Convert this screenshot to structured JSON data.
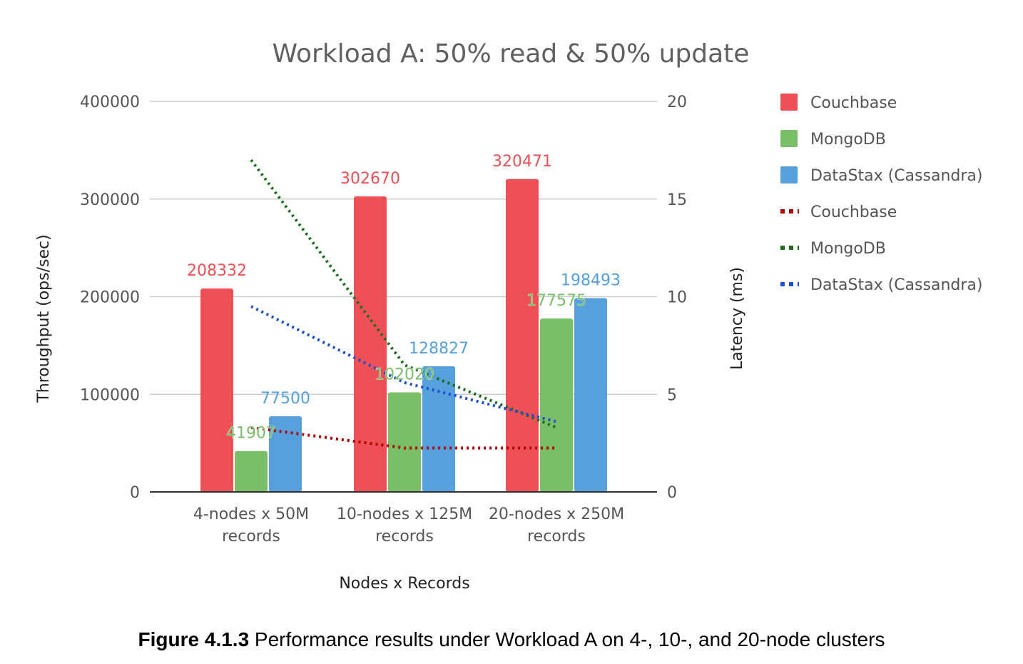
{
  "chart_data": {
    "type": "bar",
    "title": "Workload A: 50% read & 50% update",
    "xlabel": "Nodes x Records",
    "ylabel": "Throughput (ops/sec)",
    "y2label": "Latency (ms)",
    "ylim": [
      0,
      400000
    ],
    "y2lim": [
      0,
      20
    ],
    "yticks": [
      "0",
      "100000",
      "200000",
      "300000",
      "400000"
    ],
    "y2ticks": [
      "0",
      "5",
      "10",
      "15",
      "20"
    ],
    "grid": true,
    "legend_position": "right",
    "categories": [
      [
        "4-nodes x 50M",
        "records"
      ],
      [
        "10-nodes x 125M",
        "records"
      ],
      [
        "20-nodes x 250M",
        "records"
      ]
    ],
    "series": [
      {
        "name": "Couchbase",
        "values": [
          208332,
          302670,
          320471
        ],
        "labels": [
          "208332",
          "302670",
          "320471"
        ],
        "color": "#ee5055",
        "label_color": "#ee5055"
      },
      {
        "name": "MongoDB",
        "values": [
          41907,
          102020,
          177575
        ],
        "labels": [
          "41907",
          "102020",
          "177575"
        ],
        "color": "#7abf68",
        "label_color": "#7abf68"
      },
      {
        "name": "DataStax (Cassandra)",
        "values": [
          77500,
          128827,
          198493
        ],
        "labels": [
          "77500",
          "128827",
          "198493"
        ],
        "color": "#55a0dd",
        "label_color": "#55a0dd"
      }
    ],
    "line_series": [
      {
        "name": "Couchbase",
        "values": [
          3.3,
          2.25,
          2.25
        ],
        "color": "#b30000"
      },
      {
        "name": "MongoDB",
        "values": [
          17.0,
          6.5,
          3.3
        ],
        "color": "#1e6b1e"
      },
      {
        "name": "DataStax (Cassandra)",
        "values": [
          9.5,
          5.6,
          3.6
        ],
        "color": "#1f4fd6"
      }
    ]
  },
  "caption": {
    "label": "Figure 4.1.3",
    "text": " Performance results under Workload A on 4-, 10-, and 20-node clusters"
  }
}
